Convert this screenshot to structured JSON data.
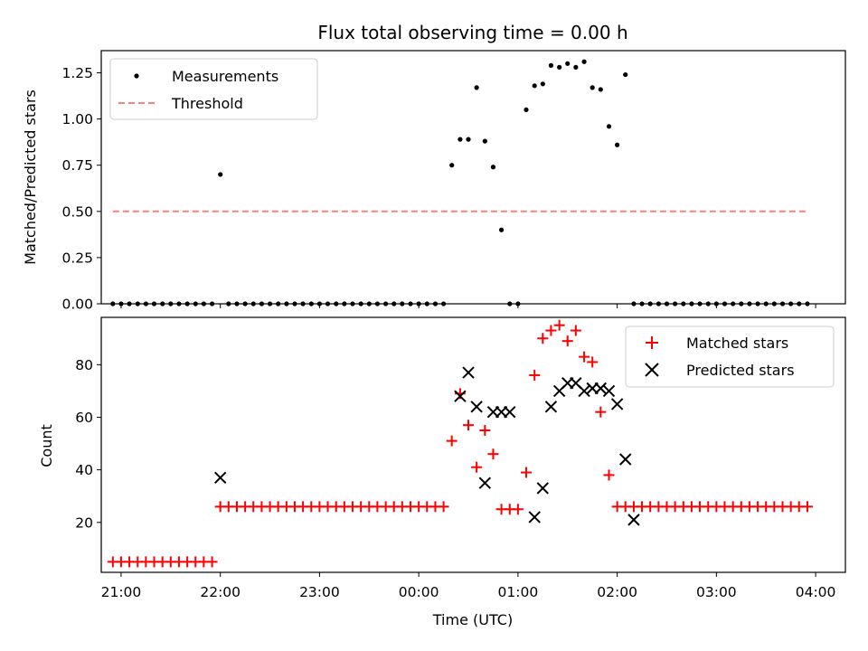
{
  "chart_data": [
    {
      "type": "scatter",
      "title": "Flux total observing time = 0.00 h",
      "xlabel": "",
      "ylabel": "Matched/Predicted stars",
      "xlim": [
        -3.2,
        4.3
      ],
      "ylim": [
        0,
        1.37
      ],
      "ytick_labels": [
        "0.00",
        "0.25",
        "0.50",
        "0.75",
        "1.00",
        "1.25"
      ],
      "yticks": [
        0,
        0.25,
        0.5,
        0.75,
        1.0,
        1.25
      ],
      "legend": {
        "placement": "upper-left",
        "entries": [
          "Measurements",
          "Threshold"
        ]
      },
      "threshold": {
        "name": "Threshold",
        "value": 0.5,
        "x_range": [
          -3.083,
          3.917
        ],
        "color": "#ff7f7f"
      },
      "series": [
        {
          "name": "Measurements",
          "color": "#000000",
          "x": [
            -3.083,
            -3.0,
            -2.917,
            -2.833,
            -2.75,
            -2.667,
            -2.583,
            -2.5,
            -2.417,
            -2.333,
            -2.25,
            -2.167,
            -2.083,
            -2.0,
            -1.917,
            -1.833,
            -1.75,
            -1.667,
            -1.583,
            -1.5,
            -1.417,
            -1.333,
            -1.25,
            -1.167,
            -1.083,
            -1.0,
            -0.917,
            -0.833,
            -0.75,
            -0.667,
            -0.583,
            -0.5,
            -0.417,
            -0.333,
            -0.25,
            -0.167,
            -0.083,
            0.0,
            0.083,
            0.167,
            0.25,
            0.333,
            0.417,
            0.5,
            0.583,
            0.667,
            0.75,
            0.833,
            0.917,
            1.0,
            1.083,
            1.167,
            1.25,
            1.333,
            1.417,
            1.5,
            1.583,
            1.667,
            1.75,
            1.833,
            1.917,
            2.0,
            2.083,
            2.167,
            2.25,
            2.333,
            2.417,
            2.5,
            2.583,
            2.667,
            2.75,
            2.833,
            2.917,
            3.0,
            3.083,
            3.167,
            3.25,
            3.333,
            3.417,
            3.5,
            3.583,
            3.667,
            3.75,
            3.833,
            3.917
          ],
          "y": [
            0,
            0,
            0,
            0,
            0,
            0,
            0,
            0,
            0,
            0,
            0,
            0,
            0,
            0.7,
            0,
            0,
            0,
            0,
            0,
            0,
            0,
            0,
            0,
            0,
            0,
            0,
            0,
            0,
            0,
            0,
            0,
            0,
            0,
            0,
            0,
            0,
            0,
            0,
            0,
            0,
            0,
            0.75,
            0.89,
            0.89,
            1.17,
            0.88,
            0.74,
            0.4,
            0,
            0,
            1.05,
            1.18,
            1.19,
            1.29,
            1.28,
            1.3,
            1.28,
            1.31,
            1.17,
            1.16,
            0.96,
            0.86,
            1.24,
            0,
            0,
            0,
            0,
            0,
            0,
            0,
            0,
            0,
            0,
            0,
            0,
            0,
            0,
            0,
            0,
            0,
            0,
            0,
            0,
            0,
            0
          ]
        }
      ]
    },
    {
      "type": "scatter",
      "title": "",
      "xlabel": "Time (UTC)",
      "ylabel": "Count",
      "xlim": [
        -3.2,
        4.3
      ],
      "ylim": [
        1,
        98
      ],
      "ytick_labels": [
        "20",
        "40",
        "60",
        "80"
      ],
      "yticks": [
        20,
        40,
        60,
        80
      ],
      "xtick_labels": [
        "21:00",
        "22:00",
        "23:00",
        "00:00",
        "01:00",
        "02:00",
        "03:00",
        "04:00"
      ],
      "xticks": [
        -3,
        -2,
        -1,
        0,
        1,
        2,
        3,
        4
      ],
      "legend": {
        "placement": "upper-right",
        "entries": [
          "Matched stars",
          "Predicted stars"
        ]
      },
      "series": [
        {
          "name": "Matched stars",
          "marker": "plus",
          "color": "#ff0000",
          "x": [
            -3.083,
            -3.0,
            -2.917,
            -2.833,
            -2.75,
            -2.667,
            -2.583,
            -2.5,
            -2.417,
            -2.333,
            -2.25,
            -2.167,
            -2.083,
            -2.0,
            -1.917,
            -1.833,
            -1.75,
            -1.667,
            -1.583,
            -1.5,
            -1.417,
            -1.333,
            -1.25,
            -1.167,
            -1.083,
            -1.0,
            -0.917,
            -0.833,
            -0.75,
            -0.667,
            -0.583,
            -0.5,
            -0.417,
            -0.333,
            -0.25,
            -0.167,
            -0.083,
            0.0,
            0.083,
            0.167,
            0.25,
            0.333,
            0.417,
            0.5,
            0.583,
            0.667,
            0.75,
            0.833,
            0.917,
            1.0,
            1.083,
            1.167,
            1.25,
            1.333,
            1.417,
            1.5,
            1.583,
            1.667,
            1.75,
            1.833,
            1.917,
            2.0,
            2.083,
            2.167,
            2.25,
            2.333,
            2.417,
            2.5,
            2.583,
            2.667,
            2.75,
            2.833,
            2.917,
            3.0,
            3.083,
            3.167,
            3.25,
            3.333,
            3.417,
            3.5,
            3.583,
            3.667,
            3.75,
            3.833,
            3.917
          ],
          "y": [
            5,
            5,
            5,
            5,
            5,
            5,
            5,
            5,
            5,
            5,
            5,
            5,
            5,
            26,
            26,
            26,
            26,
            26,
            26,
            26,
            26,
            26,
            26,
            26,
            26,
            26,
            26,
            26,
            26,
            26,
            26,
            26,
            26,
            26,
            26,
            26,
            26,
            26,
            26,
            26,
            26,
            51,
            69,
            57,
            41,
            55,
            46,
            25,
            25,
            25,
            39,
            76,
            90,
            93,
            95,
            89,
            93,
            83,
            81,
            62,
            38,
            26,
            26,
            26,
            26,
            26,
            26,
            26,
            26,
            26,
            26,
            26,
            26,
            26,
            26,
            26,
            26,
            26,
            26,
            26,
            26,
            26,
            26,
            26,
            26
          ]
        },
        {
          "name": "Predicted stars",
          "marker": "x",
          "color": "#000000",
          "x": [
            -2.0,
            0.417,
            0.5,
            0.583,
            0.667,
            0.75,
            0.833,
            0.917,
            1.167,
            1.25,
            1.333,
            1.417,
            1.5,
            1.583,
            1.667,
            1.75,
            1.833,
            1.917,
            2.0,
            2.083,
            2.167
          ],
          "y": [
            37,
            68,
            77,
            64,
            35,
            62,
            62,
            62,
            22,
            33,
            64,
            70,
            73,
            73,
            70,
            71,
            71,
            70,
            65,
            44,
            21
          ]
        }
      ]
    }
  ]
}
